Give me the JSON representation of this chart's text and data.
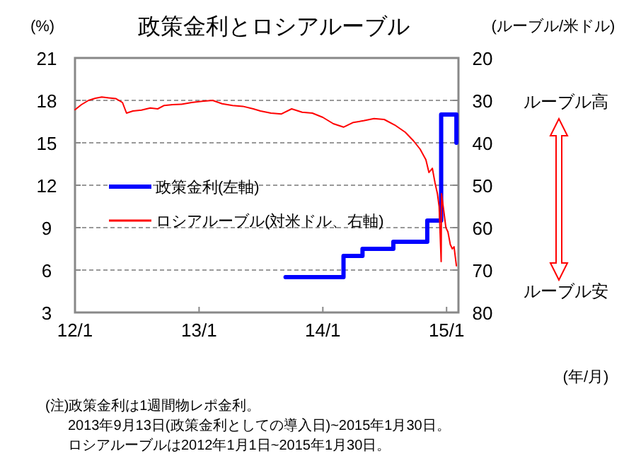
{
  "chart_data": {
    "type": "line",
    "title": "政策金利とロシアルーブル",
    "xlabel": "(年/月)",
    "ylabel": "(%)",
    "y2label": "(ルーブル/米ドル)",
    "xlim": [
      "2012-01-01",
      "2015-02-05"
    ],
    "xticks": [
      {
        "value": "2012-01-01",
        "label": "12/1"
      },
      {
        "value": "2013-01-01",
        "label": "13/1"
      },
      {
        "value": "2014-01-01",
        "label": "14/1"
      },
      {
        "value": "2015-01-01",
        "label": "15/1"
      }
    ],
    "ylim": [
      3,
      21
    ],
    "yticks": [
      3,
      6,
      9,
      12,
      15,
      18,
      21
    ],
    "y2lim": [
      80,
      20
    ],
    "y2ticks": [
      20,
      30,
      40,
      50,
      60,
      70,
      80
    ],
    "grid": "y",
    "legend": "left",
    "series": [
      {
        "name": "政策金利(左軸)",
        "type": "step",
        "color": "#0000ff",
        "x": [
          "2013-09-13",
          "2014-03-03",
          "2014-04-28",
          "2014-07-28",
          "2014-11-05",
          "2014-12-16",
          "2015-01-30"
        ],
        "values": [
          5.5,
          7,
          7.5,
          8,
          9.5,
          17,
          15
        ]
      },
      {
        "name": "ロシアルーブル(対米ドル、右軸)",
        "type": "line",
        "axis": "y2",
        "color": "#ff0000",
        "x": [
          "2012-01-01",
          "2012-01-20",
          "2012-02-10",
          "2012-03-01",
          "2012-03-20",
          "2012-04-10",
          "2012-05-01",
          "2012-05-20",
          "2012-06-01",
          "2012-06-20",
          "2012-07-15",
          "2012-08-10",
          "2012-09-01",
          "2012-09-20",
          "2012-10-15",
          "2012-11-10",
          "2012-12-10",
          "2013-01-10",
          "2013-02-10",
          "2013-03-10",
          "2013-04-10",
          "2013-05-10",
          "2013-06-10",
          "2013-07-01",
          "2013-08-01",
          "2013-09-01",
          "2013-10-01",
          "2013-11-01",
          "2013-12-01",
          "2014-01-01",
          "2014-02-01",
          "2014-03-03",
          "2014-04-01",
          "2014-05-01",
          "2014-06-01",
          "2014-07-01",
          "2014-08-01",
          "2014-09-01",
          "2014-09-25",
          "2014-10-15",
          "2014-11-01",
          "2014-11-10",
          "2014-11-20",
          "2014-11-28",
          "2014-12-05",
          "2014-12-10",
          "2014-12-16",
          "2014-12-17",
          "2014-12-22",
          "2014-12-30",
          "2015-01-05",
          "2015-01-12",
          "2015-01-18",
          "2015-01-23",
          "2015-01-30"
        ],
        "values": [
          32.2,
          31,
          30,
          29.5,
          29.2,
          29.4,
          29.6,
          30.5,
          33,
          32.5,
          32.3,
          31.8,
          32,
          31.2,
          31,
          30.9,
          30.5,
          30.2,
          30,
          30.8,
          31.2,
          31.4,
          32,
          32.5,
          33,
          33.2,
          32,
          32.8,
          33,
          34,
          35.5,
          36.3,
          35.2,
          34.8,
          34.3,
          34.5,
          35.8,
          37.5,
          39.5,
          41.5,
          44,
          47,
          46,
          49.5,
          52,
          55,
          68,
          52,
          55,
          60,
          61,
          64,
          65,
          64.5,
          69
        ]
      }
    ],
    "annotations": [
      "ルーブル高",
      "ルーブル安",
      "(注)政策金利は1週間物レポ金利。",
      "2013年9月13日(政策金利としての導入日)~2015年1月30日。",
      "ロシアルーブルは2012年1月1日~2015年1月30日。"
    ]
  }
}
